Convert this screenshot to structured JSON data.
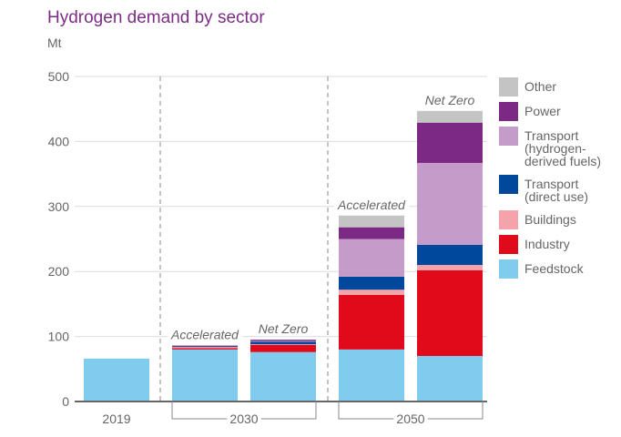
{
  "chart_data": {
    "type": "bar",
    "stacked": true,
    "title": "Hydrogen demand by sector",
    "ylabel": "Mt",
    "xlabel": "",
    "ylim": [
      0,
      500
    ],
    "yticks": [
      0,
      100,
      200,
      300,
      400,
      500
    ],
    "grid": true,
    "legend_position": "right",
    "groups": [
      {
        "label": "2019",
        "bars": [
          0
        ]
      },
      {
        "label": "2030",
        "bars": [
          1,
          2
        ]
      },
      {
        "label": "2050",
        "bars": [
          3,
          4
        ]
      }
    ],
    "bars": [
      {
        "group": "2019",
        "scenario": ""
      },
      {
        "group": "2030",
        "scenario": "Accelerated"
      },
      {
        "group": "2030",
        "scenario": "Net Zero"
      },
      {
        "group": "2050",
        "scenario": "Accelerated"
      },
      {
        "group": "2050",
        "scenario": "Net Zero"
      }
    ],
    "series": [
      {
        "name": "Feedstock",
        "color": "#80ccef",
        "values": [
          66,
          80,
          76,
          80,
          70
        ]
      },
      {
        "name": "Industry",
        "color": "#e10a1b",
        "values": [
          0,
          2,
          11,
          84,
          132
        ]
      },
      {
        "name": "Buildings",
        "color": "#f4a3aa",
        "values": [
          0,
          2,
          1,
          8,
          8
        ]
      },
      {
        "name": "Transport (direct use)",
        "color": "#00489b",
        "values": [
          0,
          1,
          4,
          20,
          31
        ]
      },
      {
        "name": "Transport (hydrogen-derived fuels)",
        "color": "#c49bc9",
        "values": [
          0,
          0,
          1,
          58,
          126
        ]
      },
      {
        "name": "Power",
        "color": "#7b2985",
        "values": [
          0,
          1,
          2,
          18,
          62
        ]
      },
      {
        "name": "Other",
        "color": "#c4c4c4",
        "values": [
          0,
          0,
          0,
          18,
          18
        ]
      }
    ],
    "legend": [
      {
        "label": [
          "Other"
        ],
        "color": "#c4c4c4"
      },
      {
        "label": [
          "Power"
        ],
        "color": "#7b2985"
      },
      {
        "label": [
          "Transport",
          "(hydrogen-",
          "derived fuels)"
        ],
        "color": "#c49bc9"
      },
      {
        "label": [
          "Transport",
          "(direct use)"
        ],
        "color": "#00489b"
      },
      {
        "label": [
          "Buildings"
        ],
        "color": "#f4a3aa"
      },
      {
        "label": [
          "Industry"
        ],
        "color": "#e10a1b"
      },
      {
        "label": [
          "Feedstock"
        ],
        "color": "#80ccef"
      }
    ]
  }
}
